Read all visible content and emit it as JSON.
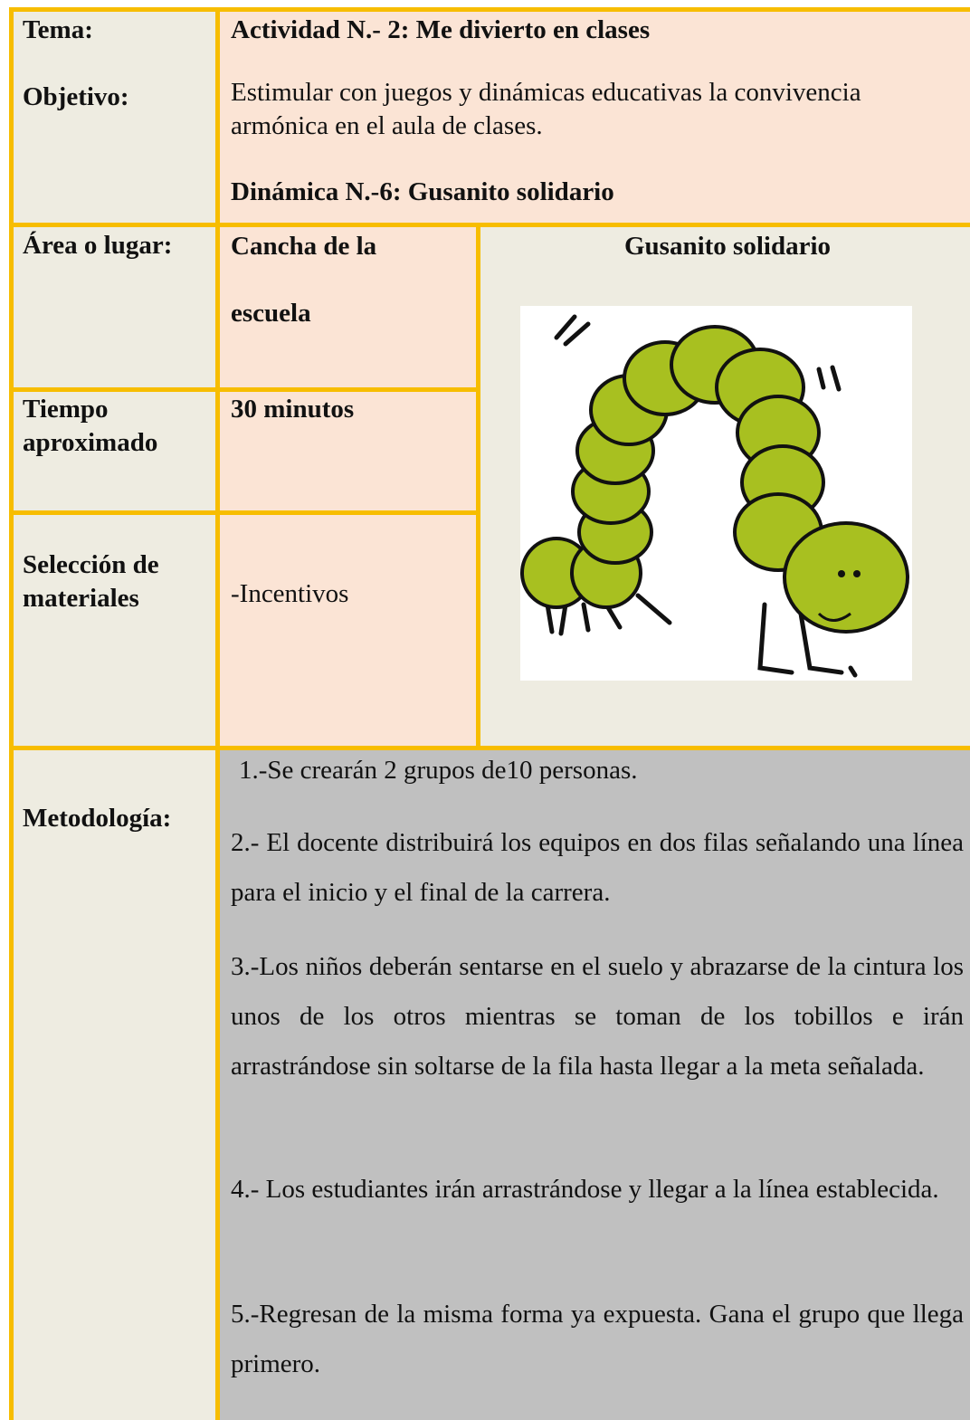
{
  "rows": [
    {
      "label": "Tema:",
      "text": "Actividad N.- 2: Me divierto en clases"
    },
    {
      "label": "Objetivo:",
      "text": "Estimular con juegos y dinámicas educativas la convivencia armónica en el aula de clases.",
      "subtitle": "Dinámica N.-6: Gusanito solidario"
    },
    {
      "label": "Área o lugar:",
      "text": "Cancha de la escuela"
    },
    {
      "label": "Tiempo aproximado",
      "text": "30 minutos"
    },
    {
      "label": "Selección de materiales",
      "text": "-Incentivos"
    },
    {
      "label": "Metodología:",
      "steps": [
        "1.-Se crearán 2 grupos de10 personas.",
        "2.- El docente distribuirá los equipos en dos filas señalando una línea para el inicio y el final de la carrera.",
        "3.-Los niños deberán sentarse en el suelo y abrazarse de la cintura los unos de los otros mientras se toman de los tobillos e irán arrastrándose sin soltarse de la fila hasta llegar a la meta señalada.",
        "4.- Los estudiantes irán arrastrándose y llegar a la línea establecida.",
        "5.-Regresan de la misma forma ya expuesta. Gana el grupo que llega primero."
      ]
    }
  ],
  "image_caption": "Gusanito solidario"
}
